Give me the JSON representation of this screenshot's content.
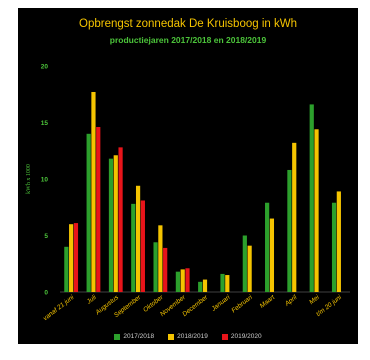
{
  "chart_data": {
    "type": "bar",
    "title": "Opbrengst zonnedak De Kruisboog in kWh",
    "subtitle": "productiejaren 2017/2018 en 2018/2019",
    "ylabel": "kWh x 1000",
    "xlabel": "",
    "ylim": [
      0,
      20
    ],
    "yticks": [
      0,
      5,
      10,
      15,
      20
    ],
    "grid": false,
    "legend_position": "bottom",
    "categories": [
      "vanaf 21 juni",
      "Juli",
      "Augustus",
      "September",
      "Oktober",
      "November",
      "December",
      "Januari",
      "Februari",
      "Maart",
      "April",
      "Mei",
      "t/m 20 juni"
    ],
    "series": [
      {
        "name": "2017/2018",
        "color": "#2ca02c",
        "values": [
          4.0,
          14.0,
          11.8,
          7.8,
          4.4,
          1.8,
          0.9,
          1.6,
          5.0,
          7.9,
          10.8,
          16.6,
          7.9
        ]
      },
      {
        "name": "2018/2019",
        "color": "#f5c400",
        "values": [
          6.0,
          17.7,
          12.1,
          9.4,
          5.9,
          2.0,
          1.1,
          1.5,
          4.1,
          6.5,
          13.2,
          14.4,
          8.9
        ]
      },
      {
        "name": "2019/2020",
        "color": "#e8141a",
        "values": [
          6.1,
          14.6,
          12.8,
          8.1,
          3.9,
          2.1,
          null,
          null,
          null,
          null,
          null,
          null,
          null
        ]
      }
    ]
  }
}
